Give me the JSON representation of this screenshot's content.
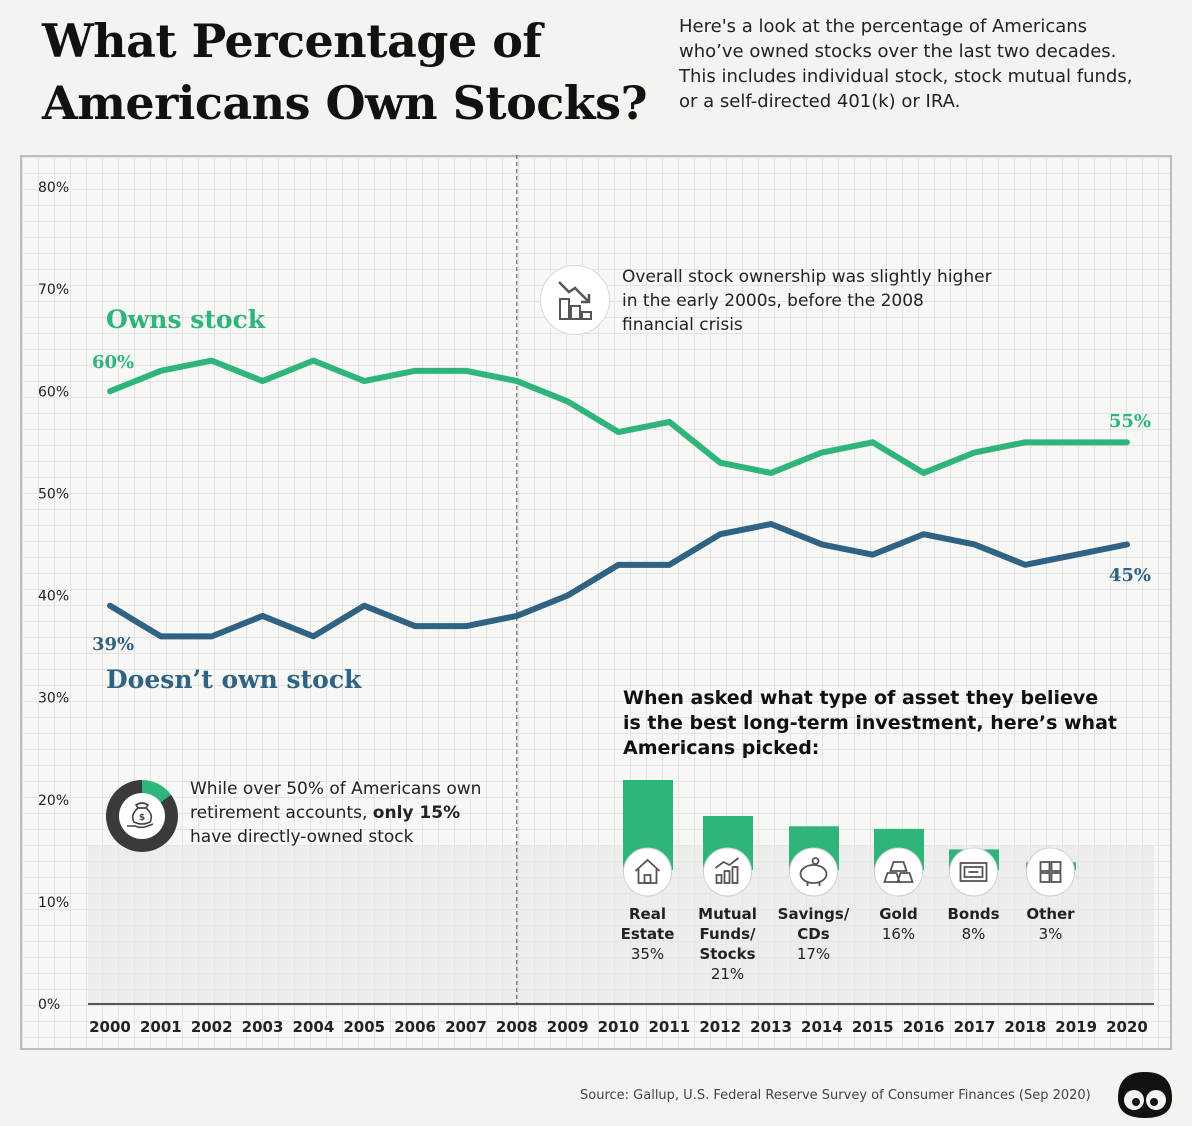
{
  "header": {
    "title_line1": "What Percentage of",
    "title_line2": "Americans Own Stocks?",
    "intro_lines": [
      "Here's a look at the percentage of Americans",
      "who’ve owned stocks over the last two decades.",
      "This includes individual stock, stock mutual funds,",
      "or a self-directed 401(k) or IRA."
    ]
  },
  "annotations": {
    "crisis_lines": [
      "Overall stock ownership was slightly higher",
      "in the early 2000s, before the 2008",
      "financial crisis"
    ],
    "retire_line1": "While over 50% of Americans own",
    "retire_line2_pre": "retirement accounts, ",
    "retire_line2_bold": "only 15%",
    "retire_line3": "have directly-owned stock"
  },
  "colors": {
    "owns": "#2fb57a",
    "not_owns": "#2f6283",
    "bar": "#2fb57a",
    "axis": "#222222",
    "dashed": "#666666"
  },
  "chart_data": [
    {
      "type": "line",
      "x": [
        "2000",
        "2001",
        "2002",
        "2003",
        "2004",
        "2005",
        "2006",
        "2007",
        "2008",
        "2009",
        "2010",
        "2011",
        "2012",
        "2013",
        "2014",
        "2015",
        "2016",
        "2017",
        "2018",
        "2019",
        "2020"
      ],
      "series": [
        {
          "name": "Owns stock",
          "values": [
            60,
            62,
            63,
            61,
            63,
            61,
            62,
            62,
            61,
            59,
            56,
            57,
            53,
            52,
            54,
            55,
            52,
            54,
            55,
            55,
            55
          ],
          "start_label": "60%",
          "end_label": "55%"
        },
        {
          "name": "Doesn’t own stock",
          "values": [
            39,
            36,
            36,
            38,
            36,
            39,
            37,
            37,
            38,
            40,
            43,
            43,
            46,
            47,
            45,
            44,
            46,
            45,
            43,
            44,
            45
          ],
          "start_label": "39%",
          "end_label": "45%"
        }
      ],
      "y_ticks": [
        "0%",
        "10%",
        "20%",
        "30%",
        "40%",
        "50%",
        "60%",
        "70%",
        "80%"
      ],
      "ylim": [
        0,
        80
      ],
      "marker_year": "2008",
      "grid": true
    },
    {
      "type": "bar",
      "title_lines": [
        "When asked what type of asset they believe",
        "is the best long-term investment, here’s what",
        "Americans picked:"
      ],
      "categories": [
        {
          "label_lines": [
            "Real",
            "Estate"
          ],
          "pct": "35%",
          "icon": "house-icon"
        },
        {
          "label_lines": [
            "Mutual",
            "Funds/",
            "Stocks"
          ],
          "pct": "21%",
          "icon": "growth-chart-icon"
        },
        {
          "label_lines": [
            "Savings/",
            "CDs"
          ],
          "pct": "17%",
          "icon": "piggy-bank-icon"
        },
        {
          "label_lines": [
            "Gold"
          ],
          "pct": "16%",
          "icon": "gold-bars-icon"
        },
        {
          "label_lines": [
            "Bonds"
          ],
          "pct": "8%",
          "icon": "bond-certificate-icon"
        },
        {
          "label_lines": [
            "Other"
          ],
          "pct": "3%",
          "icon": "grid-icon"
        }
      ],
      "values": [
        35,
        21,
        17,
        16,
        8,
        3
      ]
    }
  ],
  "footer": {
    "source": "Source: Gallup, U.S. Federal Reserve Survey of Consumer Finances (Sep 2020)",
    "logo_icon": "visual-capitalist-logo-icon"
  }
}
